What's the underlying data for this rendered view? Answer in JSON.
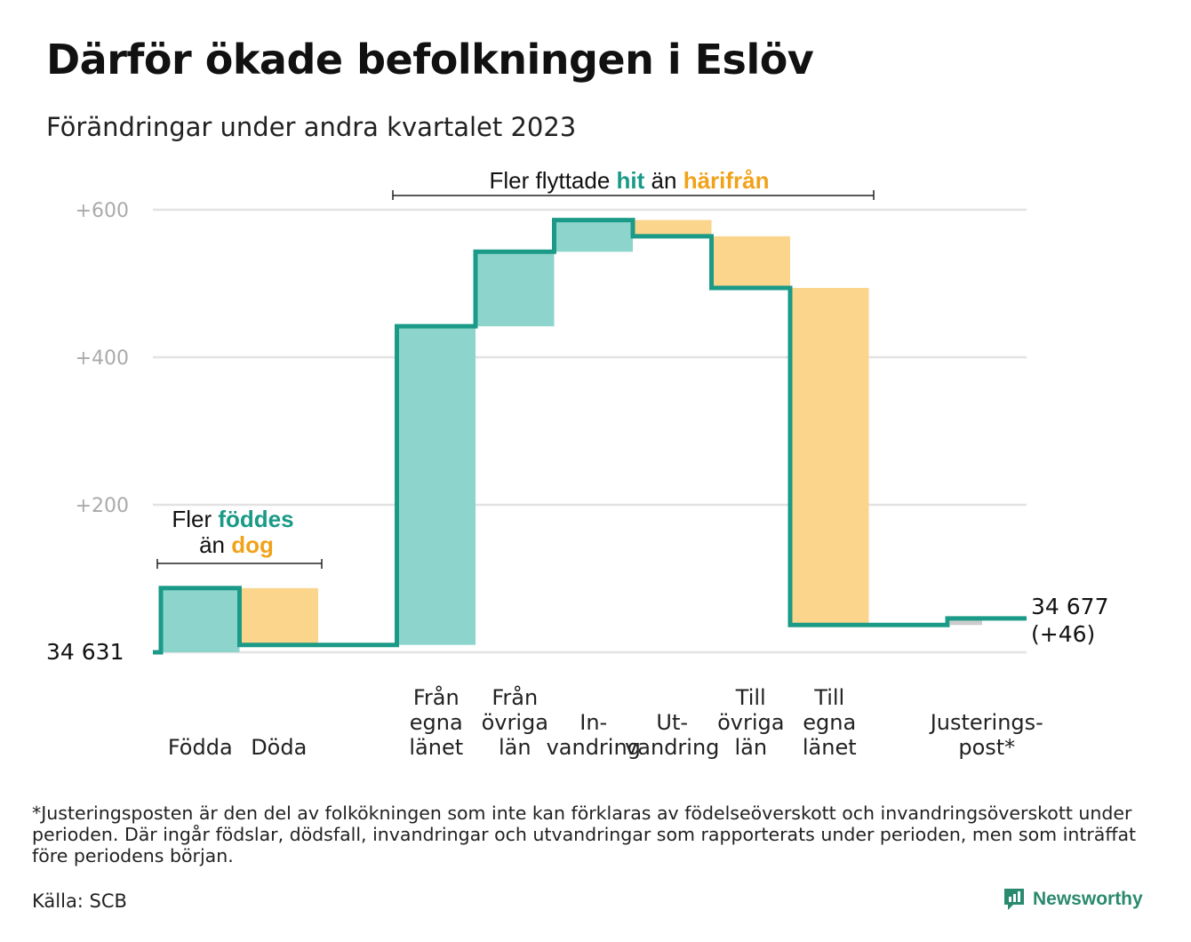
{
  "title": "Därför ökade befolkningen i Eslöv",
  "subtitle": "Förändringar under andra kvartalet 2023",
  "footnote": "*Justeringsposten är den del av folkökningen som inte kan förklaras av födelseöverskott och invandringsöverskott under perioden. Där ingår födslar, dödsfall, invandringar och utvandringar som rapporterats under perioden, men som inträffat före periodens början.",
  "source": "Källa: SCB",
  "brand": "Newsworthy",
  "colors": {
    "positive": "#8dd5cc",
    "negative": "#fad58b",
    "adjustment": "#cccccc",
    "line": "#1a9a87",
    "grid": "#e2e2e2",
    "axis_text": "#aaaaaa"
  },
  "chart_data": {
    "type": "waterfall",
    "start_value": 34631,
    "start_label": "34  631",
    "end_label": "34 677",
    "end_change_label": "(+46)",
    "ylim": [
      0,
      600
    ],
    "yticks": [
      {
        "value": 200,
        "label": "+200"
      },
      {
        "value": 400,
        "label": "+400"
      },
      {
        "value": 600,
        "label": "+600"
      }
    ],
    "steps": [
      {
        "label": "Födda",
        "change": 87,
        "kind": "positive"
      },
      {
        "label": "Döda",
        "change": -77,
        "kind": "negative"
      },
      {
        "label": "Från egna länet",
        "change": 432,
        "kind": "positive"
      },
      {
        "label": "Från övriga län",
        "change": 101,
        "kind": "positive"
      },
      {
        "label": "In-vandring",
        "change": 43,
        "kind": "positive"
      },
      {
        "label": "Ut-vandring",
        "change": -22,
        "kind": "negative"
      },
      {
        "label": "Till övriga län",
        "change": -70,
        "kind": "negative"
      },
      {
        "label": "Till egna länet",
        "change": -457,
        "kind": "negative"
      },
      {
        "label": "Justerings-post*",
        "change": 9,
        "kind": "adjustment"
      }
    ],
    "cumulative": [
      87,
      10,
      442,
      543,
      586,
      564,
      494,
      37,
      46
    ],
    "annotations": {
      "births": {
        "prefix": "Fler",
        "highlight_pos": "föddes",
        "connector": "än",
        "highlight_neg": "dog"
      },
      "migration": {
        "prefix": "Fler flyttade",
        "highlight_pos": "hit",
        "connector": "än",
        "highlight_neg": "härifrån"
      }
    }
  }
}
